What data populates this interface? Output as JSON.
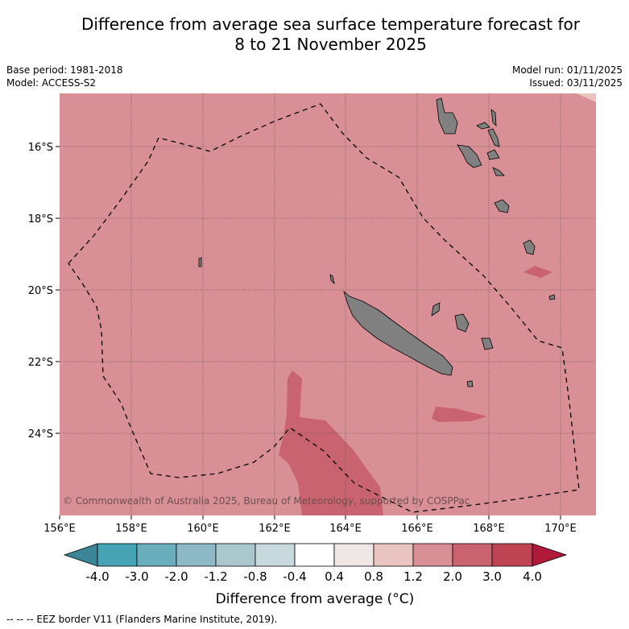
{
  "title": {
    "line1": "Difference from average sea surface temperature forecast for",
    "line2": "8 to 21 November 2025"
  },
  "meta": {
    "base_period": "Base period: 1981-2018",
    "model": "Model: ACCESS-S2",
    "model_run": "Model run: 01/11/2025",
    "issued": "Issued: 03/11/2025"
  },
  "map": {
    "lon_ticks": [
      "156°E",
      "158°E",
      "160°E",
      "162°E",
      "164°E",
      "166°E",
      "168°E",
      "170°E"
    ],
    "lat_ticks": [
      "16°S",
      "18°S",
      "20°S",
      "22°S",
      "24°S"
    ],
    "copyright": "© Commonwealth of Australia 2025, Bureau of Meteorology, supported by COSPPac",
    "background_anomaly_class": "1.2 to 2.0",
    "colors": {
      "land": "#808080",
      "eez": "#000000",
      "grid": "#555555"
    }
  },
  "colorbar": {
    "label": "Difference from average (°C)",
    "ticks": [
      "-4.0",
      "-3.0",
      "-2.0",
      "-1.2",
      "-0.8",
      "-0.4",
      "0.4",
      "0.8",
      "1.2",
      "2.0",
      "3.0",
      "4.0"
    ],
    "colors": [
      "#3a8597",
      "#46a3b3",
      "#6aaebe",
      "#8db8c5",
      "#a9c7cd",
      "#c8d9dd",
      "#ffffff",
      "#efe6e6",
      "#e9c4c0",
      "#d98f96",
      "#c9636f",
      "#bf4453",
      "#b0193a"
    ]
  },
  "footnote": "--  --  -- EEZ border V11 (Flanders Marine Institute, 2019)."
}
